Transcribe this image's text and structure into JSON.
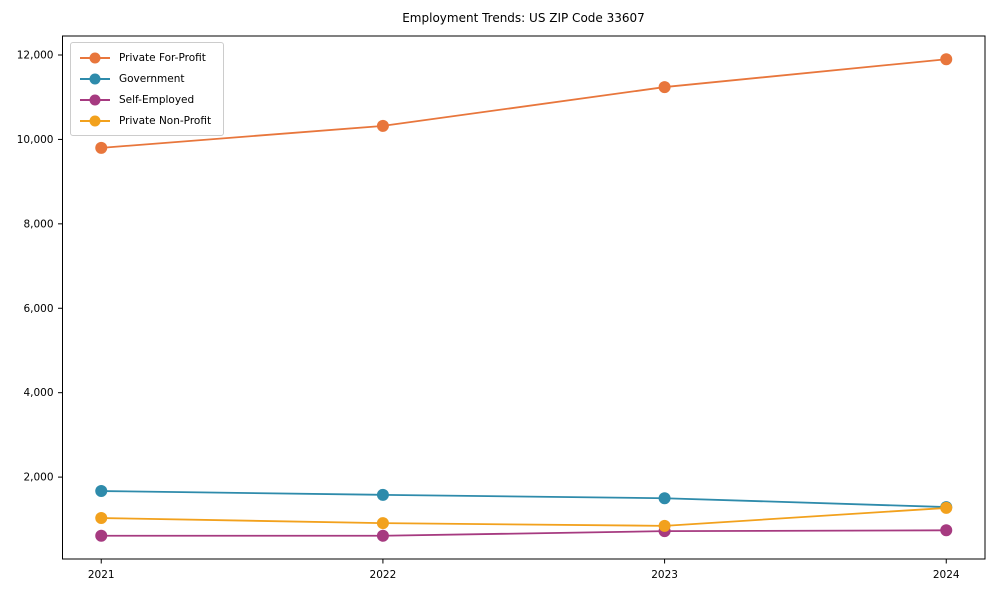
{
  "chart_data": {
    "type": "line",
    "title": "Employment Trends: US ZIP Code 33607",
    "x_categories": [
      "2021",
      "2022",
      "2023",
      "2024"
    ],
    "series": [
      {
        "name": "Private For-Profit",
        "color": "#e8763c",
        "values": [
          9800,
          10320,
          11240,
          11900
        ]
      },
      {
        "name": "Government",
        "color": "#2e8bab",
        "values": [
          1670,
          1580,
          1500,
          1290
        ]
      },
      {
        "name": "Self-Employed",
        "color": "#a63a80",
        "values": [
          610,
          610,
          720,
          740
        ]
      },
      {
        "name": "Private Non-Profit",
        "color": "#f2a11d",
        "values": [
          1030,
          910,
          845,
          1270
        ]
      }
    ],
    "yticks": [
      2000,
      4000,
      6000,
      8000,
      10000,
      12000
    ],
    "ytick_labels": [
      "2,000",
      "4,000",
      "6,000",
      "8,000",
      "10,000",
      "12,000"
    ],
    "ylim": [
      60,
      12450
    ],
    "grid": false,
    "legend_position": "upper-left",
    "axis_color": "#000000",
    "text_color": "#000000"
  }
}
